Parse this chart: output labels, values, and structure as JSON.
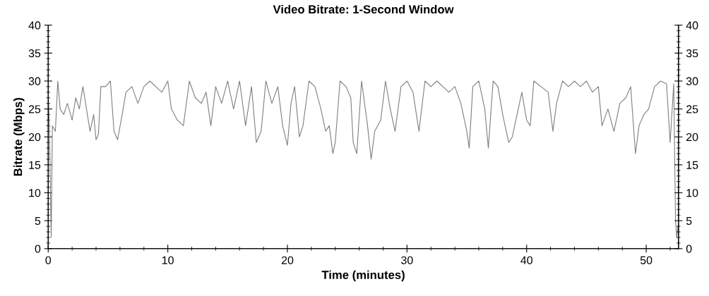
{
  "chart_data": {
    "type": "line",
    "title": "Video Bitrate: 1-Second Window",
    "xlabel": "Time (minutes)",
    "ylabel": "Bitrate (Mbps)",
    "xlim": [
      0,
      52.7
    ],
    "xticks": [
      0,
      10,
      20,
      30,
      40,
      50
    ],
    "ylim": [
      0,
      40
    ],
    "yticks": [
      0,
      5,
      10,
      15,
      20,
      25,
      30,
      35,
      40
    ],
    "y2lim": [
      0,
      40
    ],
    "y2ticks": [
      0,
      5,
      10,
      15,
      20,
      25,
      30,
      35,
      40
    ],
    "grid": false,
    "legend": false,
    "marker": "none",
    "line_style": "solid",
    "series": [
      {
        "color": "#7f7f7f",
        "x": [
          0,
          0.1,
          0.25,
          0.35,
          0.6,
          0.8,
          1.0,
          1.3,
          1.6,
          2.0,
          2.3,
          2.6,
          2.9,
          3.2,
          3.5,
          3.8,
          4.0,
          4.2,
          4.4,
          4.8,
          5.2,
          5.5,
          5.8,
          6.1,
          6.5,
          7.0,
          7.5,
          8.0,
          8.5,
          9.0,
          9.5,
          10.0,
          10.3,
          10.8,
          11.3,
          11.8,
          12.3,
          12.8,
          13.2,
          13.6,
          14.0,
          14.5,
          15.0,
          15.5,
          16.0,
          16.5,
          17.0,
          17.4,
          17.8,
          18.2,
          18.7,
          19.2,
          19.6,
          20.0,
          20.3,
          20.6,
          21.0,
          21.3,
          21.8,
          22.3,
          22.8,
          23.2,
          23.5,
          23.8,
          24.0,
          24.4,
          24.9,
          25.3,
          25.5,
          25.8,
          26.2,
          26.7,
          27.0,
          27.3,
          27.8,
          28.2,
          28.6,
          29.0,
          29.5,
          30.0,
          30.5,
          31.0,
          31.5,
          32.0,
          32.5,
          33.0,
          33.5,
          34.0,
          34.5,
          35.0,
          35.2,
          35.5,
          36.0,
          36.5,
          36.8,
          37.2,
          37.6,
          38.0,
          38.5,
          38.8,
          39.2,
          39.6,
          40.0,
          40.3,
          40.6,
          41.2,
          41.8,
          42.2,
          42.5,
          43.0,
          43.5,
          44.0,
          44.5,
          45.0,
          45.5,
          46.0,
          46.3,
          46.8,
          47.3,
          47.8,
          48.3,
          48.7,
          49.1,
          49.4,
          49.8,
          50.2,
          50.7,
          51.2,
          51.7,
          52.0,
          52.3,
          52.45,
          52.55,
          52.65
        ],
        "values": [
          28,
          22,
          2,
          22,
          21,
          30,
          25,
          24,
          26,
          23,
          27,
          25,
          29,
          25,
          21,
          24,
          19.5,
          20.5,
          29,
          29,
          30,
          21,
          19.5,
          23,
          28,
          29,
          26,
          29,
          30,
          29,
          28,
          30,
          25,
          23,
          22,
          30,
          27,
          26,
          28,
          22,
          29,
          26,
          30,
          25,
          30,
          22,
          29,
          19,
          21,
          30,
          26,
          29,
          22,
          18.5,
          26,
          29,
          20,
          22,
          30,
          29,
          25,
          21,
          22,
          17,
          19,
          30,
          29,
          27,
          19,
          17,
          30,
          22,
          16,
          21,
          23,
          30,
          25,
          21,
          29,
          30,
          28,
          21,
          30,
          29,
          30,
          29,
          28,
          29,
          26,
          21,
          18,
          29,
          30,
          25,
          18,
          30,
          29,
          24,
          19,
          20,
          24,
          28,
          23,
          22,
          30,
          29,
          28,
          21,
          26,
          30,
          29,
          30,
          29,
          30,
          28,
          29,
          22,
          25,
          21,
          26,
          27,
          29,
          17,
          22,
          24,
          25,
          29,
          30,
          29.5,
          19,
          29.5,
          5,
          2,
          4
        ]
      }
    ]
  }
}
